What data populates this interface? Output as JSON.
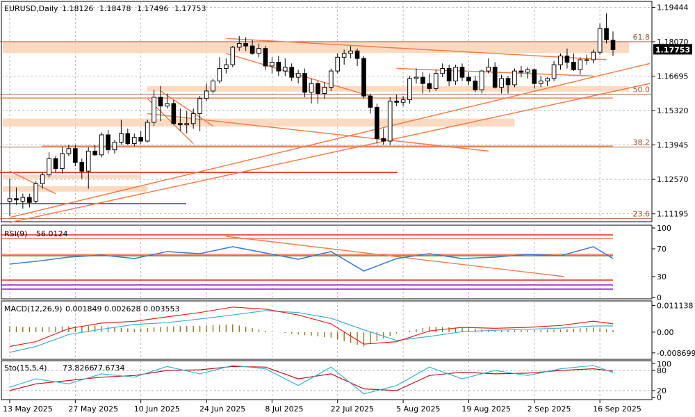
{
  "header": {
    "symbol": "EURUSD,Daily",
    "ohlc": [
      "1.18126",
      "1.18478",
      "1.17496",
      "1.17753"
    ]
  },
  "colors": {
    "up_candle": "#ffffff",
    "down_candle": "#000000",
    "trendline": "#f47c4c",
    "zone": "#fbd4b4",
    "support_red": "#e8231c",
    "purple_line": "#8b1fbf",
    "rsi_line": "#3b7fd6",
    "macd_line": "#e8231c",
    "signal_line": "#3bb0d6",
    "histogram": "#8b6914",
    "stoch_main": "#3bb0d6",
    "stoch_signal": "#c0141c",
    "current_price_bg": "#000000"
  },
  "chart_data": [
    {
      "type": "candlestick",
      "title": "EURUSD,Daily",
      "ylim": [
        1.1088,
        1.1968
      ],
      "y_ticks": [
        "1.19444",
        "1.18070",
        "1.16695",
        "1.15320",
        "1.13945",
        "1.12570",
        "1.11195"
      ],
      "current_price": "1.17753",
      "x_ticks": [
        "13 May 2025",
        "27 May 2025",
        "10 Jun 2025",
        "24 Jun 2025",
        "8 Jul 2025",
        "22 Jul 2025",
        "5 Aug 2025",
        "19 Aug 2025",
        "2 Sep 2025",
        "16 Sep 2025"
      ],
      "fib_levels": [
        {
          "label": "61.8",
          "value": 1.1807
        },
        {
          "label": "50.0",
          "value": 1.1597
        },
        {
          "label": "38.2",
          "value": 1.1386
        },
        {
          "label": "23.6",
          "value": 1.11
        }
      ],
      "candles": [
        {
          "date": "2025-05-13",
          "o": 1.117,
          "h": 1.126,
          "l": 1.111,
          "c": 1.118
        },
        {
          "date": "2025-05-14",
          "o": 1.118,
          "h": 1.1225,
          "l": 1.1155,
          "c": 1.1175
        },
        {
          "date": "2025-05-15",
          "o": 1.117,
          "h": 1.12,
          "l": 1.114,
          "c": 1.1185
        },
        {
          "date": "2025-05-16",
          "o": 1.1185,
          "h": 1.12,
          "l": 1.1145,
          "c": 1.1165
        },
        {
          "date": "2025-05-19",
          "o": 1.117,
          "h": 1.125,
          "l": 1.116,
          "c": 1.124
        },
        {
          "date": "2025-05-20",
          "o": 1.124,
          "h": 1.1285,
          "l": 1.122,
          "c": 1.1275
        },
        {
          "date": "2025-05-21",
          "o": 1.1275,
          "h": 1.1365,
          "l": 1.1265,
          "c": 1.134
        },
        {
          "date": "2025-05-22",
          "o": 1.134,
          "h": 1.135,
          "l": 1.1285,
          "c": 1.13
        },
        {
          "date": "2025-05-23",
          "o": 1.13,
          "h": 1.1385,
          "l": 1.128,
          "c": 1.136
        },
        {
          "date": "2025-05-26",
          "o": 1.136,
          "h": 1.1395,
          "l": 1.135,
          "c": 1.138
        },
        {
          "date": "2025-05-27",
          "o": 1.138,
          "h": 1.1395,
          "l": 1.131,
          "c": 1.1325
        },
        {
          "date": "2025-05-28",
          "o": 1.1325,
          "h": 1.134,
          "l": 1.126,
          "c": 1.129
        },
        {
          "date": "2025-05-29",
          "o": 1.129,
          "h": 1.1385,
          "l": 1.122,
          "c": 1.137
        },
        {
          "date": "2025-05-30",
          "o": 1.137,
          "h": 1.1395,
          "l": 1.135,
          "c": 1.1355
        },
        {
          "date": "2025-06-02",
          "o": 1.1355,
          "h": 1.1445,
          "l": 1.1345,
          "c": 1.1435
        },
        {
          "date": "2025-06-03",
          "o": 1.1435,
          "h": 1.1455,
          "l": 1.136,
          "c": 1.1375
        },
        {
          "date": "2025-06-04",
          "o": 1.1375,
          "h": 1.1415,
          "l": 1.136,
          "c": 1.1405
        },
        {
          "date": "2025-06-05",
          "o": 1.1405,
          "h": 1.1495,
          "l": 1.1395,
          "c": 1.144
        },
        {
          "date": "2025-06-06",
          "o": 1.144,
          "h": 1.146,
          "l": 1.1395,
          "c": 1.14
        },
        {
          "date": "2025-06-09",
          "o": 1.14,
          "h": 1.144,
          "l": 1.139,
          "c": 1.1425
        },
        {
          "date": "2025-06-10",
          "o": 1.1425,
          "h": 1.145,
          "l": 1.14,
          "c": 1.141
        },
        {
          "date": "2025-06-11",
          "o": 1.141,
          "h": 1.1495,
          "l": 1.1405,
          "c": 1.1485
        },
        {
          "date": "2025-06-12",
          "o": 1.1485,
          "h": 1.1615,
          "l": 1.147,
          "c": 1.1585
        },
        {
          "date": "2025-06-13",
          "o": 1.1585,
          "h": 1.163,
          "l": 1.149,
          "c": 1.155
        },
        {
          "date": "2025-06-16",
          "o": 1.155,
          "h": 1.16,
          "l": 1.154,
          "c": 1.156
        },
        {
          "date": "2025-06-17",
          "o": 1.156,
          "h": 1.1575,
          "l": 1.1475,
          "c": 1.148
        },
        {
          "date": "2025-06-18",
          "o": 1.148,
          "h": 1.154,
          "l": 1.145,
          "c": 1.1475
        },
        {
          "date": "2025-06-19",
          "o": 1.1475,
          "h": 1.153,
          "l": 1.144,
          "c": 1.148
        },
        {
          "date": "2025-06-20",
          "o": 1.148,
          "h": 1.154,
          "l": 1.146,
          "c": 1.152
        },
        {
          "date": "2025-06-23",
          "o": 1.152,
          "h": 1.159,
          "l": 1.145,
          "c": 1.158
        },
        {
          "date": "2025-06-24",
          "o": 1.158,
          "h": 1.164,
          "l": 1.157,
          "c": 1.161
        },
        {
          "date": "2025-06-25",
          "o": 1.161,
          "h": 1.166,
          "l": 1.16,
          "c": 1.165
        },
        {
          "date": "2025-06-26",
          "o": 1.165,
          "h": 1.1745,
          "l": 1.164,
          "c": 1.17
        },
        {
          "date": "2025-06-27",
          "o": 1.17,
          "h": 1.174,
          "l": 1.168,
          "c": 1.1715
        },
        {
          "date": "2025-06-30",
          "o": 1.1715,
          "h": 1.179,
          "l": 1.1705,
          "c": 1.1785
        },
        {
          "date": "2025-07-01",
          "o": 1.1785,
          "h": 1.183,
          "l": 1.177,
          "c": 1.18
        },
        {
          "date": "2025-07-02",
          "o": 1.18,
          "h": 1.1825,
          "l": 1.177,
          "c": 1.179
        },
        {
          "date": "2025-07-03",
          "o": 1.179,
          "h": 1.1815,
          "l": 1.1755,
          "c": 1.176
        },
        {
          "date": "2025-07-04",
          "o": 1.176,
          "h": 1.18,
          "l": 1.1745,
          "c": 1.178
        },
        {
          "date": "2025-07-07",
          "o": 1.178,
          "h": 1.179,
          "l": 1.1695,
          "c": 1.171
        },
        {
          "date": "2025-07-08",
          "o": 1.171,
          "h": 1.1745,
          "l": 1.168,
          "c": 1.1725
        },
        {
          "date": "2025-07-09",
          "o": 1.1725,
          "h": 1.175,
          "l": 1.167,
          "c": 1.169
        },
        {
          "date": "2025-07-10",
          "o": 1.169,
          "h": 1.174,
          "l": 1.167,
          "c": 1.1705
        },
        {
          "date": "2025-07-11",
          "o": 1.1705,
          "h": 1.172,
          "l": 1.165,
          "c": 1.1665
        },
        {
          "date": "2025-07-14",
          "o": 1.1665,
          "h": 1.1695,
          "l": 1.164,
          "c": 1.168
        },
        {
          "date": "2025-07-15",
          "o": 1.168,
          "h": 1.17,
          "l": 1.1585,
          "c": 1.1605
        },
        {
          "date": "2025-07-16",
          "o": 1.1605,
          "h": 1.166,
          "l": 1.156,
          "c": 1.164
        },
        {
          "date": "2025-07-17",
          "o": 1.164,
          "h": 1.165,
          "l": 1.156,
          "c": 1.16
        },
        {
          "date": "2025-07-18",
          "o": 1.16,
          "h": 1.1645,
          "l": 1.158,
          "c": 1.1625
        },
        {
          "date": "2025-07-21",
          "o": 1.1625,
          "h": 1.17,
          "l": 1.161,
          "c": 1.169
        },
        {
          "date": "2025-07-22",
          "o": 1.169,
          "h": 1.176,
          "l": 1.168,
          "c": 1.1745
        },
        {
          "date": "2025-07-23",
          "o": 1.1745,
          "h": 1.1775,
          "l": 1.1715,
          "c": 1.176
        },
        {
          "date": "2025-07-24",
          "o": 1.176,
          "h": 1.179,
          "l": 1.174,
          "c": 1.177
        },
        {
          "date": "2025-07-25",
          "o": 1.177,
          "h": 1.178,
          "l": 1.171,
          "c": 1.174
        },
        {
          "date": "2025-07-28",
          "o": 1.174,
          "h": 1.175,
          "l": 1.158,
          "c": 1.159
        },
        {
          "date": "2025-07-29",
          "o": 1.159,
          "h": 1.16,
          "l": 1.152,
          "c": 1.1545
        },
        {
          "date": "2025-07-30",
          "o": 1.1545,
          "h": 1.156,
          "l": 1.14,
          "c": 1.142
        },
        {
          "date": "2025-07-31",
          "o": 1.142,
          "h": 1.146,
          "l": 1.1395,
          "c": 1.141
        },
        {
          "date": "2025-08-01",
          "o": 1.141,
          "h": 1.1585,
          "l": 1.1395,
          "c": 1.157
        },
        {
          "date": "2025-08-04",
          "o": 1.157,
          "h": 1.1595,
          "l": 1.155,
          "c": 1.1565
        },
        {
          "date": "2025-08-05",
          "o": 1.1565,
          "h": 1.159,
          "l": 1.155,
          "c": 1.1575
        },
        {
          "date": "2025-08-06",
          "o": 1.1575,
          "h": 1.167,
          "l": 1.156,
          "c": 1.166
        },
        {
          "date": "2025-08-07",
          "o": 1.166,
          "h": 1.17,
          "l": 1.164,
          "c": 1.1665
        },
        {
          "date": "2025-08-08",
          "o": 1.1665,
          "h": 1.1685,
          "l": 1.16,
          "c": 1.164
        },
        {
          "date": "2025-08-11",
          "o": 1.164,
          "h": 1.168,
          "l": 1.1605,
          "c": 1.162
        },
        {
          "date": "2025-08-12",
          "o": 1.162,
          "h": 1.1695,
          "l": 1.161,
          "c": 1.168
        },
        {
          "date": "2025-08-13",
          "o": 1.168,
          "h": 1.172,
          "l": 1.1665,
          "c": 1.17
        },
        {
          "date": "2025-08-14",
          "o": 1.17,
          "h": 1.1715,
          "l": 1.163,
          "c": 1.165
        },
        {
          "date": "2025-08-15",
          "o": 1.165,
          "h": 1.1715,
          "l": 1.1635,
          "c": 1.1705
        },
        {
          "date": "2025-08-18",
          "o": 1.1705,
          "h": 1.172,
          "l": 1.165,
          "c": 1.1665
        },
        {
          "date": "2025-08-19",
          "o": 1.1665,
          "h": 1.1685,
          "l": 1.1635,
          "c": 1.165
        },
        {
          "date": "2025-08-20",
          "o": 1.165,
          "h": 1.167,
          "l": 1.1605,
          "c": 1.1615
        },
        {
          "date": "2025-08-21",
          "o": 1.1615,
          "h": 1.1695,
          "l": 1.16,
          "c": 1.169
        },
        {
          "date": "2025-08-22",
          "o": 1.169,
          "h": 1.174,
          "l": 1.168,
          "c": 1.1705
        },
        {
          "date": "2025-08-25",
          "o": 1.1705,
          "h": 1.1725,
          "l": 1.162,
          "c": 1.1625
        },
        {
          "date": "2025-08-26",
          "o": 1.1625,
          "h": 1.1675,
          "l": 1.16,
          "c": 1.166
        },
        {
          "date": "2025-08-27",
          "o": 1.166,
          "h": 1.167,
          "l": 1.16,
          "c": 1.1635
        },
        {
          "date": "2025-08-28",
          "o": 1.1635,
          "h": 1.17,
          "l": 1.1625,
          "c": 1.169
        },
        {
          "date": "2025-08-29",
          "o": 1.169,
          "h": 1.171,
          "l": 1.1665,
          "c": 1.1685
        },
        {
          "date": "2025-09-01",
          "o": 1.1685,
          "h": 1.1705,
          "l": 1.166,
          "c": 1.1695
        },
        {
          "date": "2025-09-02",
          "o": 1.1695,
          "h": 1.17,
          "l": 1.162,
          "c": 1.164
        },
        {
          "date": "2025-09-03",
          "o": 1.164,
          "h": 1.167,
          "l": 1.1625,
          "c": 1.165
        },
        {
          "date": "2025-09-04",
          "o": 1.165,
          "h": 1.1665,
          "l": 1.163,
          "c": 1.166
        },
        {
          "date": "2025-09-05",
          "o": 1.166,
          "h": 1.173,
          "l": 1.165,
          "c": 1.1715
        },
        {
          "date": "2025-09-08",
          "o": 1.1715,
          "h": 1.176,
          "l": 1.1695,
          "c": 1.175
        },
        {
          "date": "2025-09-09",
          "o": 1.175,
          "h": 1.178,
          "l": 1.17,
          "c": 1.1725
        },
        {
          "date": "2025-09-10",
          "o": 1.1725,
          "h": 1.176,
          "l": 1.169,
          "c": 1.1695
        },
        {
          "date": "2025-09-11",
          "o": 1.1695,
          "h": 1.1745,
          "l": 1.1675,
          "c": 1.1735
        },
        {
          "date": "2025-09-12",
          "o": 1.1735,
          "h": 1.1755,
          "l": 1.1715,
          "c": 1.1735
        },
        {
          "date": "2025-09-15",
          "o": 1.1735,
          "h": 1.1775,
          "l": 1.172,
          "c": 1.1765
        },
        {
          "date": "2025-09-16",
          "o": 1.1765,
          "h": 1.188,
          "l": 1.1755,
          "c": 1.186
        },
        {
          "date": "2025-09-17",
          "o": 1.186,
          "h": 1.192,
          "l": 1.18,
          "c": 1.1815
        },
        {
          "date": "2025-09-18",
          "o": 1.18126,
          "h": 1.18478,
          "l": 1.17496,
          "c": 1.17753
        }
      ]
    },
    {
      "type": "line",
      "title": "RSI(9)",
      "header_values": [
        "56.0124"
      ],
      "ylim": [
        0,
        100
      ],
      "y_ticks": [
        "100",
        "70",
        "30",
        "0"
      ],
      "levels": [
        70,
        30
      ],
      "x": [
        "2025-05-13",
        "2025-05-19",
        "2025-05-26",
        "2025-06-02",
        "2025-06-09",
        "2025-06-16",
        "2025-06-23",
        "2025-06-30",
        "2025-07-07",
        "2025-07-14",
        "2025-07-21",
        "2025-07-28",
        "2025-08-04",
        "2025-08-11",
        "2025-08-18",
        "2025-08-25",
        "2025-09-01",
        "2025-09-08",
        "2025-09-15",
        "2025-09-18"
      ],
      "series": [
        {
          "name": "RSI(9)",
          "values": [
            48,
            52,
            58,
            61,
            56,
            66,
            63,
            73,
            64,
            55,
            66,
            38,
            56,
            63,
            56,
            58,
            62,
            60,
            73,
            56
          ]
        }
      ]
    },
    {
      "type": "line",
      "title": "MACD(12,26,9)",
      "header_values": [
        "0.001849",
        "0.002628",
        "0.003553"
      ],
      "ylim": [
        -0.0108,
        0.0122
      ],
      "y_ticks": [
        "0.011138",
        "0.00",
        "-0.008699"
      ],
      "x": [
        "2025-05-13",
        "2025-05-19",
        "2025-05-26",
        "2025-06-02",
        "2025-06-09",
        "2025-06-16",
        "2025-06-23",
        "2025-06-30",
        "2025-07-07",
        "2025-07-14",
        "2025-07-21",
        "2025-07-28",
        "2025-08-04",
        "2025-08-11",
        "2025-08-18",
        "2025-08-25",
        "2025-09-01",
        "2025-09-08",
        "2025-09-15",
        "2025-09-18"
      ],
      "series": [
        {
          "name": "MACD",
          "values": [
            -0.006,
            -0.004,
            0.0015,
            0.0038,
            0.0045,
            0.0064,
            0.0082,
            0.0105,
            0.0096,
            0.0072,
            0.0035,
            -0.005,
            -0.004,
            0.0005,
            0.002,
            0.0016,
            0.002,
            0.0028,
            0.0046,
            0.0035
          ]
        },
        {
          "name": "Signal",
          "values": [
            -0.0085,
            -0.006,
            -0.001,
            0.0012,
            0.0032,
            0.004,
            0.0055,
            0.0072,
            0.009,
            0.0082,
            0.0058,
            0.001,
            -0.0035,
            -0.0018,
            0.0002,
            0.0008,
            0.0012,
            0.0017,
            0.0026,
            0.0026
          ]
        },
        {
          "name": "Histogram",
          "values": [
            0.0025,
            0.002,
            0.0025,
            0.0026,
            0.0013,
            0.0024,
            0.0027,
            0.0033,
            0.0006,
            -0.001,
            -0.0023,
            -0.006,
            -0.0005,
            0.0023,
            0.0018,
            0.0008,
            0.0008,
            0.0011,
            0.002,
            0.0009
          ]
        }
      ]
    },
    {
      "type": "line",
      "title": "Sto(15,5,4)",
      "header_values": [
        "73.8266",
        "77.6734"
      ],
      "ylim": [
        -5,
        105
      ],
      "y_ticks": [
        "100",
        "80",
        "20",
        "0"
      ],
      "levels": [
        80,
        20
      ],
      "x": [
        "2025-05-13",
        "2025-05-19",
        "2025-05-26",
        "2025-06-02",
        "2025-06-09",
        "2025-06-16",
        "2025-06-23",
        "2025-06-30",
        "2025-07-07",
        "2025-07-14",
        "2025-07-21",
        "2025-07-28",
        "2025-08-04",
        "2025-08-11",
        "2025-08-18",
        "2025-08-25",
        "2025-09-01",
        "2025-09-08",
        "2025-09-15",
        "2025-09-18"
      ],
      "series": [
        {
          "name": "Main",
          "values": [
            30,
            55,
            40,
            70,
            60,
            92,
            70,
            95,
            85,
            35,
            90,
            10,
            35,
            90,
            55,
            80,
            65,
            85,
            95,
            74
          ]
        },
        {
          "name": "Signal",
          "values": [
            20,
            40,
            50,
            60,
            65,
            80,
            82,
            92,
            90,
            55,
            70,
            25,
            20,
            65,
            75,
            70,
            72,
            80,
            85,
            78
          ]
        }
      ]
    }
  ]
}
